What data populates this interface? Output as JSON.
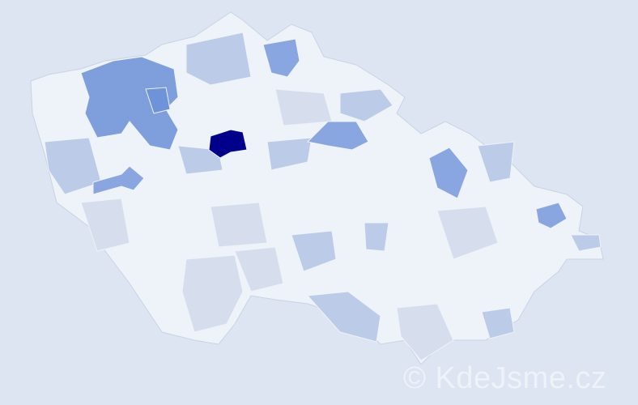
{
  "map": {
    "colors": {
      "background": "#dce5f1",
      "base": "#eef2f9",
      "border": "#c9d3e6",
      "light": "#d6deee",
      "medium_light": "#bccbe7",
      "medium": "#8aa6e0",
      "high": "#7a9bdb",
      "max": "#00008b"
    }
  },
  "watermark": "© KdeJsme.cz"
}
